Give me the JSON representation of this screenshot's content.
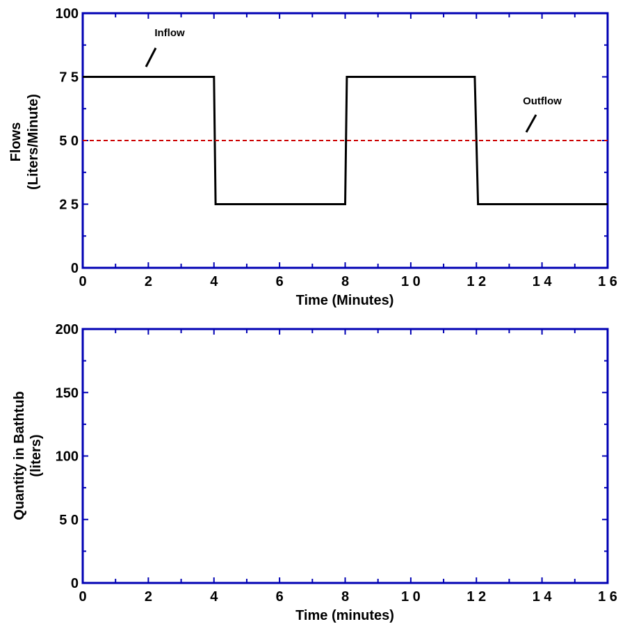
{
  "chart_data": [
    {
      "type": "line",
      "xlabel": "Time (Minutes)",
      "ylabel_line1": "Flows",
      "ylabel_line2": "(Liters/Minute)",
      "xlim": [
        0,
        16
      ],
      "ylim": [
        0,
        100
      ],
      "x_ticks": [
        0,
        2,
        4,
        6,
        8,
        10,
        12,
        14,
        16
      ],
      "x_tick_labels": [
        "0",
        "2",
        "4",
        "6",
        "8",
        "1 0",
        "1 2",
        "1 4",
        "1 6"
      ],
      "y_ticks": [
        0,
        25,
        50,
        75,
        100
      ],
      "y_tick_labels": [
        "0",
        "2 5",
        "5 0",
        "7 5",
        "100"
      ],
      "series": [
        {
          "name": "Inflow",
          "color": "#000000",
          "style": "solid",
          "x": [
            0,
            4,
            4.05,
            8,
            8.05,
            11.95,
            12.05,
            16
          ],
          "y": [
            75,
            75,
            25,
            25,
            75,
            75,
            25,
            25
          ]
        },
        {
          "name": "Outflow",
          "color": "#cc0000",
          "style": "dashed",
          "x": [
            0,
            16
          ],
          "y": [
            50,
            50
          ]
        }
      ],
      "annotations": [
        {
          "text": "Inflow",
          "series": 0
        },
        {
          "text": "Outflow",
          "series": 1
        }
      ]
    },
    {
      "type": "line",
      "xlabel": "Time (minutes)",
      "ylabel_line1": "Quantity in Bathtub",
      "ylabel_line2": "(liters)",
      "xlim": [
        0,
        16
      ],
      "ylim": [
        0,
        200
      ],
      "x_ticks": [
        0,
        2,
        4,
        6,
        8,
        10,
        12,
        14,
        16
      ],
      "x_tick_labels": [
        "0",
        "2",
        "4",
        "6",
        "8",
        "1 0",
        "1 2",
        "1 4",
        "1 6"
      ],
      "y_ticks": [
        0,
        50,
        100,
        150,
        200
      ],
      "y_tick_labels": [
        "0",
        "5 0",
        "100",
        "150",
        "200"
      ],
      "series": []
    }
  ],
  "colors": {
    "frame": "#0000b4",
    "inflow": "#000000",
    "outflow": "#cc0000"
  }
}
